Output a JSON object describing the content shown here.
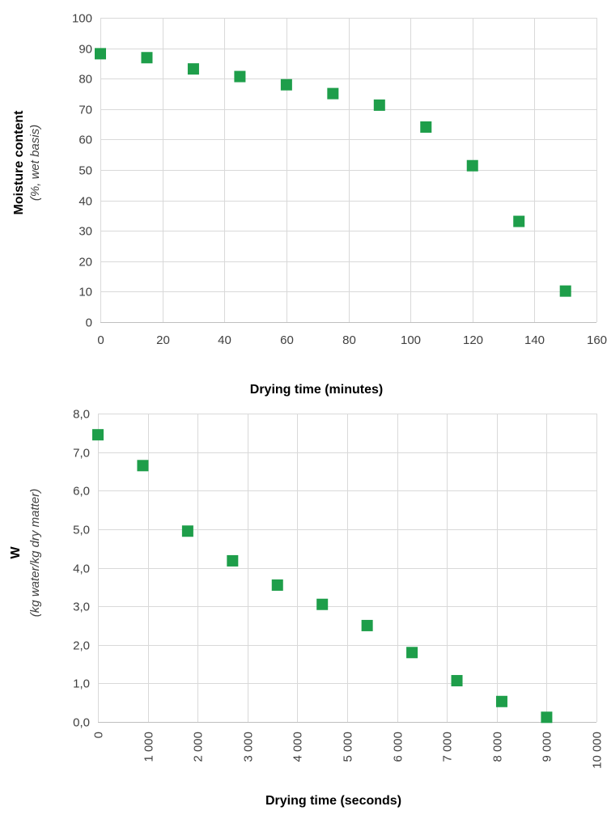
{
  "chart_data": [
    {
      "type": "scatter",
      "xlabel": "Drying time (minutes)",
      "ylabel": "Moisture content",
      "ylabel_sub": "(%, wet basis)",
      "xlim": [
        0,
        160
      ],
      "ylim": [
        0,
        100
      ],
      "x_ticks": [
        0,
        20,
        40,
        60,
        80,
        100,
        120,
        140,
        160
      ],
      "x_tick_labels": [
        "0",
        "20",
        "40",
        "60",
        "80",
        "100",
        "120",
        "140",
        "160"
      ],
      "y_ticks": [
        0,
        10,
        20,
        30,
        40,
        50,
        60,
        70,
        80,
        90,
        100
      ],
      "y_tick_labels": [
        "0",
        "10",
        "20",
        "30",
        "40",
        "50",
        "60",
        "70",
        "80",
        "90",
        "100"
      ],
      "grid": true,
      "marker": "square",
      "color": "#1e9e4a",
      "x": [
        0,
        15,
        30,
        45,
        60,
        75,
        90,
        105,
        120,
        135,
        150
      ],
      "y": [
        88.2,
        86.9,
        83.2,
        80.7,
        78.0,
        75.1,
        71.3,
        64.1,
        51.4,
        33.1,
        10.2
      ]
    },
    {
      "type": "scatter",
      "xlabel": "Drying time (seconds)",
      "ylabel": "W",
      "ylabel_sub": "(kg water/kg dry matter)",
      "xlim": [
        0,
        10000
      ],
      "ylim": [
        0,
        8
      ],
      "x_ticks": [
        0,
        1000,
        2000,
        3000,
        4000,
        5000,
        6000,
        7000,
        8000,
        9000,
        10000
      ],
      "x_tick_labels": [
        "0",
        "1 000",
        "2 000",
        "3 000",
        "4 000",
        "5 000",
        "6 000",
        "7 000",
        "8 000",
        "9 000",
        "10 000"
      ],
      "y_ticks": [
        0,
        1,
        2,
        3,
        4,
        5,
        6,
        7,
        8
      ],
      "y_tick_labels": [
        "0,0",
        "1,0",
        "2,0",
        "3,0",
        "4,0",
        "5,0",
        "6,0",
        "7,0",
        "8,0"
      ],
      "grid": true,
      "marker": "square",
      "color": "#1e9e4a",
      "x": [
        0,
        900,
        1800,
        2700,
        3600,
        4500,
        5400,
        6300,
        7200,
        8100,
        9000
      ],
      "y": [
        7.45,
        6.65,
        4.95,
        4.18,
        3.55,
        3.05,
        2.5,
        1.8,
        1.07,
        0.53,
        0.12
      ]
    }
  ]
}
